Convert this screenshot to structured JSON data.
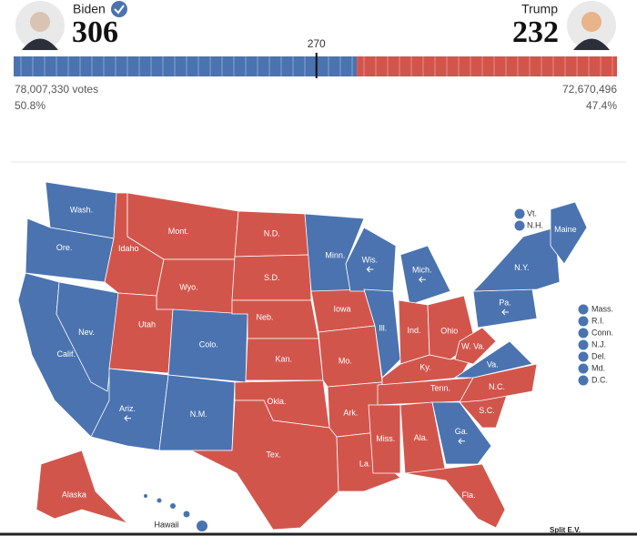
{
  "header": {
    "threshold": 270,
    "candidates": [
      {
        "name": "Biden",
        "electoral_votes": 306,
        "votes": "78,007,330 votes",
        "share": "50.8%",
        "color": "#4a73b0",
        "winner": true
      },
      {
        "name": "Trump",
        "electoral_votes": 232,
        "votes": "72,670,496",
        "share": "47.4%",
        "color": "#d2554c",
        "winner": false
      }
    ]
  },
  "map": {
    "states": [
      {
        "label": "Wash.",
        "color": "#4a73b0"
      },
      {
        "label": "Ore.",
        "color": "#4a73b0"
      },
      {
        "label": "Calif.",
        "color": "#4a73b0"
      },
      {
        "label": "Nev.",
        "color": "#4a73b0"
      },
      {
        "label": "Idaho",
        "color": "#d2554c"
      },
      {
        "label": "Mont.",
        "color": "#d2554c"
      },
      {
        "label": "Wyo.",
        "color": "#d2554c"
      },
      {
        "label": "Utah",
        "color": "#d2554c"
      },
      {
        "label": "Colo.",
        "color": "#4a73b0"
      },
      {
        "label": "Ariz.",
        "color": "#4a73b0",
        "flipped": true
      },
      {
        "label": "N.M.",
        "color": "#4a73b0"
      },
      {
        "label": "N.D.",
        "color": "#d2554c"
      },
      {
        "label": "S.D.",
        "color": "#d2554c"
      },
      {
        "label": "Neb.",
        "color": "#d2554c"
      },
      {
        "label": "Kan.",
        "color": "#d2554c"
      },
      {
        "label": "Okla.",
        "color": "#d2554c"
      },
      {
        "label": "Tex.",
        "color": "#d2554c"
      },
      {
        "label": "Minn.",
        "color": "#4a73b0"
      },
      {
        "label": "Iowa",
        "color": "#d2554c"
      },
      {
        "label": "Mo.",
        "color": "#d2554c"
      },
      {
        "label": "Ark.",
        "color": "#d2554c"
      },
      {
        "label": "La.",
        "color": "#d2554c"
      },
      {
        "label": "Wis.",
        "color": "#4a73b0",
        "flipped": true
      },
      {
        "label": "Mich.",
        "color": "#4a73b0",
        "flipped": true
      },
      {
        "label": "Ill.",
        "color": "#4a73b0"
      },
      {
        "label": "Ind.",
        "color": "#d2554c"
      },
      {
        "label": "Ohio",
        "color": "#d2554c"
      },
      {
        "label": "Ky.",
        "color": "#d2554c"
      },
      {
        "label": "Tenn.",
        "color": "#d2554c"
      },
      {
        "label": "Miss.",
        "color": "#d2554c"
      },
      {
        "label": "Ala.",
        "color": "#d2554c"
      },
      {
        "label": "Ga.",
        "color": "#4a73b0",
        "flipped": true
      },
      {
        "label": "Fla.",
        "color": "#d2554c"
      },
      {
        "label": "S.C.",
        "color": "#d2554c"
      },
      {
        "label": "N.C.",
        "color": "#d2554c"
      },
      {
        "label": "Va.",
        "color": "#4a73b0"
      },
      {
        "label": "W. Va.",
        "color": "#d2554c"
      },
      {
        "label": "Pa.",
        "color": "#4a73b0",
        "flipped": true
      },
      {
        "label": "N.Y.",
        "color": "#4a73b0"
      },
      {
        "label": "Maine",
        "color": "#4a73b0"
      },
      {
        "label": "Alaska",
        "color": "#d2554c"
      },
      {
        "label": "Hawaii",
        "color": "#4a73b0"
      }
    ],
    "small_states_top": [
      {
        "label": "Vt.",
        "color": "#4a73b0"
      },
      {
        "label": "N.H.",
        "color": "#4a73b0"
      }
    ],
    "small_states_side": [
      {
        "label": "Mass.",
        "color": "#4a73b0"
      },
      {
        "label": "R.I.",
        "color": "#4a73b0"
      },
      {
        "label": "Conn.",
        "color": "#4a73b0"
      },
      {
        "label": "N.J.",
        "color": "#4a73b0"
      },
      {
        "label": "Del.",
        "color": "#4a73b0"
      },
      {
        "label": "Md.",
        "color": "#4a73b0"
      },
      {
        "label": "D.C.",
        "color": "#4a73b0"
      }
    ],
    "footnote": "Split E.V."
  }
}
